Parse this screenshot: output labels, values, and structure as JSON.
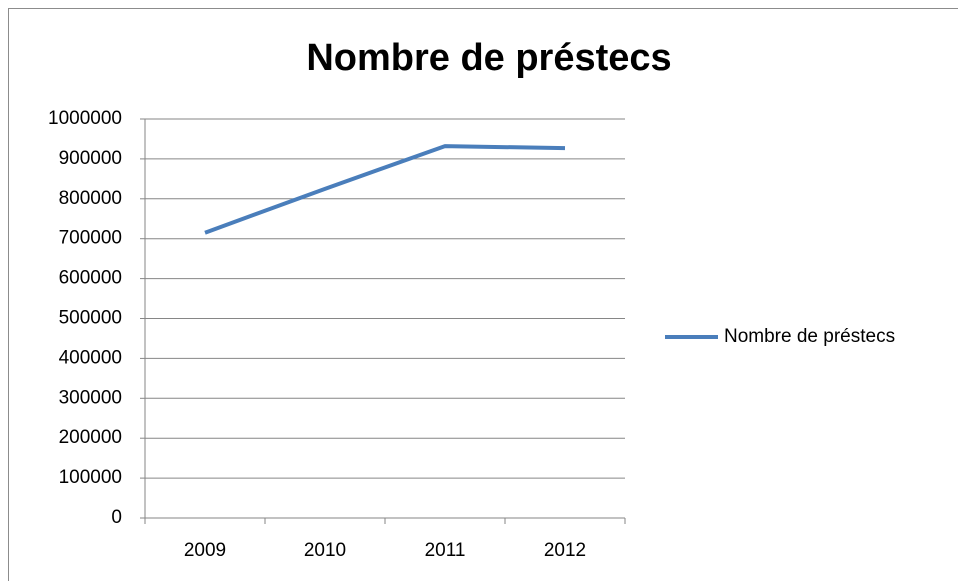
{
  "chart_data": {
    "type": "line",
    "title": "Nombre de préstecs",
    "categories": [
      "2009",
      "2010",
      "2011",
      "2012"
    ],
    "series": [
      {
        "name": "Nombre de préstecs",
        "color": "#4a7ebb",
        "values": [
          715000,
          825000,
          932000,
          927000
        ]
      }
    ],
    "ylim": [
      0,
      1000000
    ],
    "yticks": [
      0,
      100000,
      200000,
      300000,
      400000,
      500000,
      600000,
      700000,
      800000,
      900000,
      1000000
    ],
    "grid": true,
    "legend": "right"
  }
}
